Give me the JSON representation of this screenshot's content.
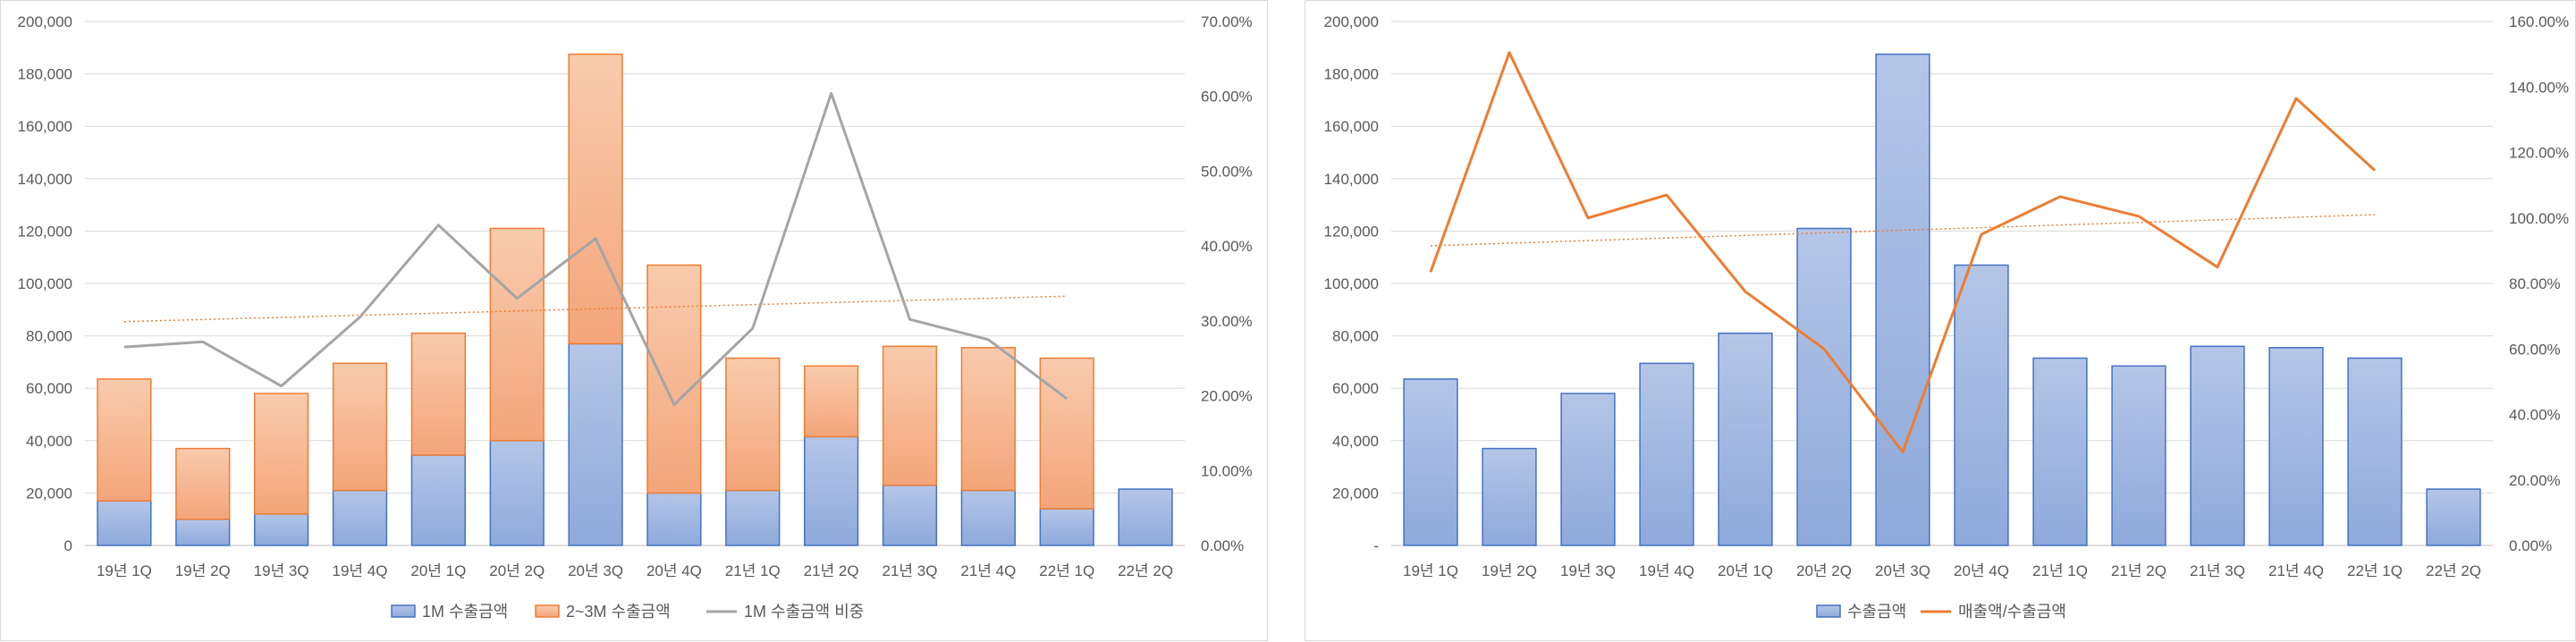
{
  "chart_data": [
    {
      "type": "bar",
      "stacked": true,
      "categories": [
        "19년 1Q",
        "19년 2Q",
        "19년 3Q",
        "19년 4Q",
        "20년 1Q",
        "20년 2Q",
        "20년 3Q",
        "20년 4Q",
        "21년 1Q",
        "21년 2Q",
        "21년 3Q",
        "21년 4Q",
        "22년 1Q",
        "22년 2Q"
      ],
      "series": [
        {
          "name": "1M 수출금액",
          "kind": "bar",
          "axis": "left",
          "color": "#8faadc",
          "values": [
            17000,
            10000,
            12000,
            21000,
            34500,
            40000,
            77000,
            20000,
            21000,
            41500,
            23000,
            21000,
            14000,
            21500
          ]
        },
        {
          "name": "2~3M 수출금액",
          "kind": "bar",
          "axis": "left",
          "color": "#f4b183",
          "values": [
            46500,
            27000,
            46000,
            48500,
            46500,
            81000,
            110500,
            87000,
            50500,
            27000,
            53000,
            54500,
            57500,
            null
          ]
        },
        {
          "name": "1M 수출금액 비중",
          "kind": "line",
          "axis": "right",
          "color": "#a5a5a5",
          "values": [
            0.265,
            0.272,
            0.213,
            0.305,
            0.428,
            0.33,
            0.41,
            0.188,
            0.29,
            0.604,
            0.302,
            0.275,
            0.196,
            null
          ]
        }
      ],
      "trendline": {
        "of": "1M 수출금액 비중",
        "start": 0.299,
        "end": 0.333,
        "color": "#ed7d31"
      },
      "y_left": {
        "min": 0,
        "max": 200000,
        "step": 20000,
        "tick_labels": [
          "0",
          "20,000",
          "40,000",
          "60,000",
          "80,000",
          "100,000",
          "120,000",
          "140,000",
          "160,000",
          "180,000",
          "200,000"
        ]
      },
      "y_right": {
        "min": 0,
        "max": 0.7,
        "step": 0.1,
        "tick_labels": [
          "0.00%",
          "10.00%",
          "20.00%",
          "30.00%",
          "40.00%",
          "50.00%",
          "60.00%",
          "70.00%"
        ]
      },
      "gridlines": true,
      "legend_position": "bottom",
      "legend": [
        {
          "label": "1M 수출금액",
          "marker": "bar",
          "color": "#8faadc"
        },
        {
          "label": "2~3M 수출금액",
          "marker": "bar",
          "color": "#f4b183"
        },
        {
          "label": "1M 수출금액 비중",
          "marker": "line",
          "color": "#a5a5a5"
        }
      ]
    },
    {
      "type": "bar",
      "stacked": false,
      "categories": [
        "19년 1Q",
        "19년 2Q",
        "19년 3Q",
        "19년 4Q",
        "20년 1Q",
        "20년 2Q",
        "20년 3Q",
        "20년 4Q",
        "21년 1Q",
        "21년 2Q",
        "21년 3Q",
        "21년 4Q",
        "22년 1Q",
        "22년 2Q"
      ],
      "series": [
        {
          "name": "수출금액",
          "kind": "bar",
          "axis": "left",
          "color": "#8faadc",
          "values": [
            63500,
            37000,
            58000,
            69500,
            81000,
            121000,
            187500,
            107000,
            71500,
            68500,
            76000,
            75500,
            71500,
            21500
          ]
        },
        {
          "name": "매출액/수출금액",
          "kind": "line",
          "axis": "right",
          "color": "#ed7d31",
          "values": [
            0.835,
            1.505,
            1.0,
            1.07,
            0.775,
            0.6,
            0.285,
            0.95,
            1.065,
            1.005,
            0.85,
            1.365,
            1.145,
            null
          ]
        }
      ],
      "trendline": {
        "of": "매출액/수출금액",
        "start": 0.915,
        "end": 1.01,
        "color": "#ed7d31"
      },
      "y_left": {
        "min": 0,
        "max": 200000,
        "step": 20000,
        "tick_labels": [
          "-",
          "20,000",
          "40,000",
          "60,000",
          "80,000",
          "100,000",
          "120,000",
          "140,000",
          "160,000",
          "180,000",
          "200,000"
        ]
      },
      "y_right": {
        "min": 0,
        "max": 1.6,
        "step": 0.2,
        "tick_labels": [
          "0.00%",
          "20.00%",
          "40.00%",
          "60.00%",
          "80.00%",
          "100.00%",
          "120.00%",
          "140.00%",
          "160.00%"
        ]
      },
      "gridlines": true,
      "legend_position": "bottom",
      "legend": [
        {
          "label": "수출금액",
          "marker": "bar",
          "color": "#8faadc"
        },
        {
          "label": "매출액/수출금액",
          "marker": "line",
          "color": "#ed7d31"
        }
      ]
    }
  ]
}
